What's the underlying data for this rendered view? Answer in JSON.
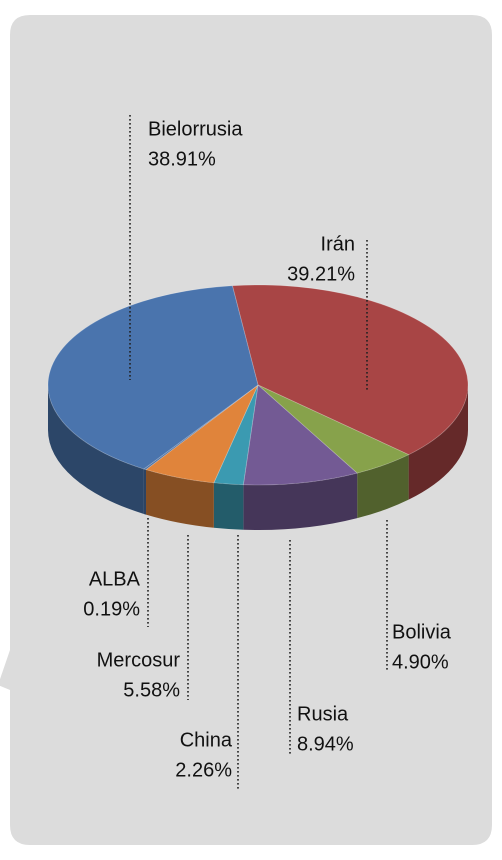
{
  "chart_data": {
    "type": "pie",
    "categories": [
      "Irán",
      "Bolivia",
      "Rusia",
      "China",
      "Mercosur",
      "ALBA",
      "Bielorrusia"
    ],
    "values": [
      39.21,
      4.9,
      8.94,
      2.26,
      5.58,
      0.19,
      38.91
    ],
    "value_labels": [
      "39.21%",
      "4.90%",
      "8.94%",
      "2.26%",
      "5.58%",
      "0.19%",
      "38.91%"
    ],
    "colors": [
      "#a84545",
      "#87a24b",
      "#735a94",
      "#3b9ab1",
      "#e0843b",
      "#4b70a3",
      "#4a74ad"
    ]
  }
}
